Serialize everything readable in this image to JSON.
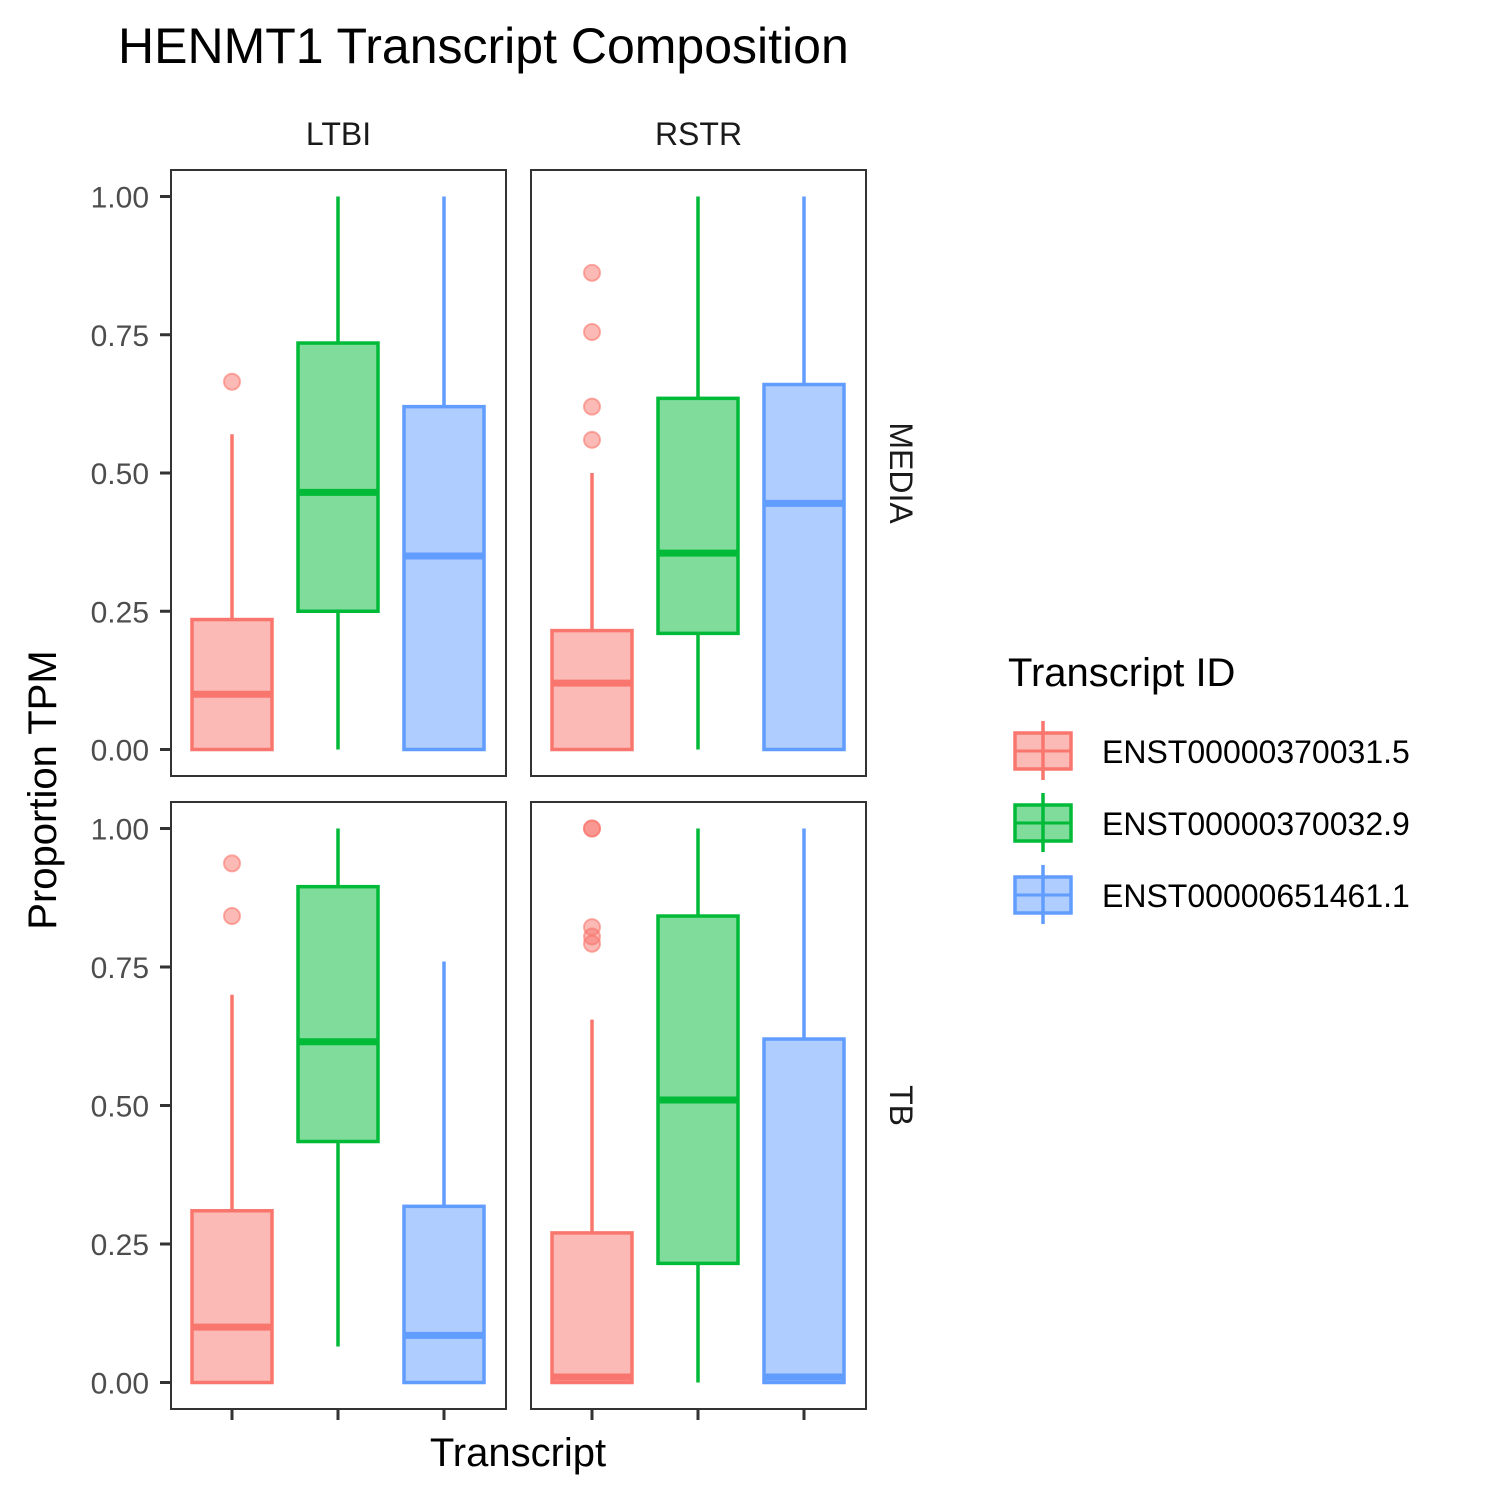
{
  "colors": {
    "ENST00000370031.5": "#f8766d",
    "ENST00000370032.9": "#00ba38",
    "ENST00000651461.1": "#619cff",
    "panel_border": "#333333",
    "tick": "#333333"
  },
  "chart_data": {
    "type": "boxplot",
    "title": "HENMT1 Transcript Composition",
    "xlabel": "Transcript",
    "ylabel": "Proportion TPM",
    "ylim": [
      0,
      1
    ],
    "yticks": [
      "0.00",
      "0.25",
      "0.50",
      "0.75",
      "1.00"
    ],
    "yticks_values": [
      0,
      0.25,
      0.5,
      0.75,
      1
    ],
    "col_facets": [
      "LTBI",
      "RSTR"
    ],
    "row_facets": [
      "MEDIA",
      "TB"
    ],
    "grid": false,
    "legend": {
      "title": "Transcript ID",
      "position": "right",
      "entries": [
        "ENST00000370031.5",
        "ENST00000370032.9",
        "ENST00000651461.1"
      ]
    },
    "series_order": [
      "ENST00000370031.5",
      "ENST00000370032.9",
      "ENST00000651461.1"
    ],
    "panels": [
      {
        "col": "LTBI",
        "row": "MEDIA",
        "boxes": [
          {
            "series": "ENST00000370031.5",
            "min": 0.0,
            "q1": 0.0,
            "median": 0.1,
            "q3": 0.235,
            "max": 0.57,
            "outliers": [
              0.665
            ]
          },
          {
            "series": "ENST00000370032.9",
            "min": 0.0,
            "q1": 0.25,
            "median": 0.465,
            "q3": 0.735,
            "max": 1.0,
            "outliers": []
          },
          {
            "series": "ENST00000651461.1",
            "min": 0.0,
            "q1": 0.0,
            "median": 0.35,
            "q3": 0.62,
            "max": 1.0,
            "outliers": []
          }
        ]
      },
      {
        "col": "RSTR",
        "row": "MEDIA",
        "boxes": [
          {
            "series": "ENST00000370031.5",
            "min": 0.0,
            "q1": 0.0,
            "median": 0.12,
            "q3": 0.215,
            "max": 0.5,
            "outliers": [
              0.56,
              0.62,
              0.755,
              0.862
            ]
          },
          {
            "series": "ENST00000370032.9",
            "min": 0.0,
            "q1": 0.21,
            "median": 0.355,
            "q3": 0.635,
            "max": 1.0,
            "outliers": []
          },
          {
            "series": "ENST00000651461.1",
            "min": 0.0,
            "q1": 0.0,
            "median": 0.445,
            "q3": 0.66,
            "max": 1.0,
            "outliers": []
          }
        ]
      },
      {
        "col": "LTBI",
        "row": "TB",
        "boxes": [
          {
            "series": "ENST00000370031.5",
            "min": 0.0,
            "q1": 0.0,
            "median": 0.1,
            "q3": 0.31,
            "max": 0.7,
            "outliers": [
              0.842,
              0.937
            ]
          },
          {
            "series": "ENST00000370032.9",
            "min": 0.065,
            "q1": 0.435,
            "median": 0.615,
            "q3": 0.895,
            "max": 1.0,
            "outliers": []
          },
          {
            "series": "ENST00000651461.1",
            "min": 0.0,
            "q1": 0.0,
            "median": 0.085,
            "q3": 0.318,
            "max": 0.76,
            "outliers": []
          }
        ]
      },
      {
        "col": "RSTR",
        "row": "TB",
        "boxes": [
          {
            "series": "ENST00000370031.5",
            "min": 0.0,
            "q1": 0.0,
            "median": 0.01,
            "q3": 0.27,
            "max": 0.655,
            "outliers": [
              0.792,
              0.805,
              0.822,
              1.0,
              1.0
            ]
          },
          {
            "series": "ENST00000370032.9",
            "min": 0.0,
            "q1": 0.215,
            "median": 0.51,
            "q3": 0.842,
            "max": 1.0,
            "outliers": []
          },
          {
            "series": "ENST00000651461.1",
            "min": 0.0,
            "q1": 0.0,
            "median": 0.01,
            "q3": 0.62,
            "max": 1.0,
            "outliers": []
          }
        ]
      }
    ]
  }
}
